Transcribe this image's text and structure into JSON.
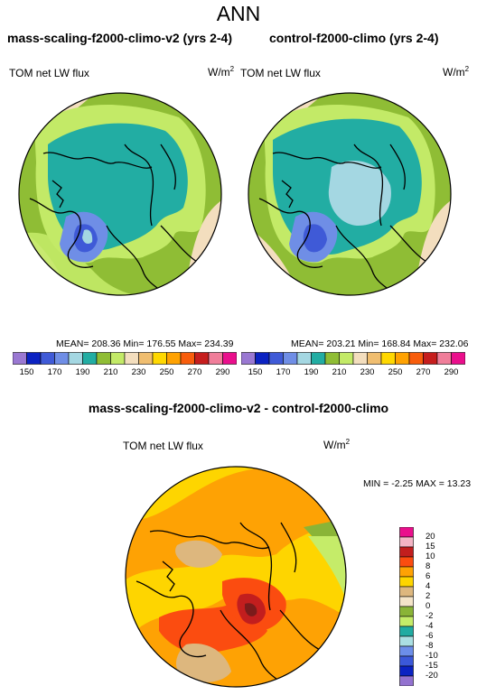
{
  "title": "ANN",
  "panels": [
    {
      "title": "mass-scaling-f2000-climo-v2 (yrs 2-4)",
      "variable": "TOM net LW flux",
      "units": "W/m",
      "units_sup": "2",
      "stats": "MEAN= 208.36  Min= 176.55  Max= 234.39"
    },
    {
      "title": "control-f2000-climo (yrs 2-4)",
      "variable": "TOM net LW flux",
      "units": "W/m",
      "units_sup": "2",
      "stats": "MEAN= 203.21  Min= 168.84  Max= 232.06"
    }
  ],
  "diff_panel": {
    "title": "mass-scaling-f2000-climo-v2 - control-f2000-climo",
    "variable": "TOM net LW flux",
    "units": "W/m",
    "units_sup": "2",
    "stats": "MIN =  -2.25 MAX =  13.23"
  },
  "colorbar_abs": {
    "colors": [
      "#9a78d2",
      "#0b22c2",
      "#3f5ad7",
      "#6f8ee6",
      "#a4d7e2",
      "#22ada3",
      "#8fbd35",
      "#c3ea67",
      "#f3debe",
      "#f0be70",
      "#ffd801",
      "#ffa202",
      "#f85d0c",
      "#c61d1d",
      "#f07e9a",
      "#ea0f8c"
    ],
    "labels": [
      "150",
      "170",
      "190",
      "210",
      "230",
      "250",
      "270",
      "290"
    ]
  },
  "colorbar_diff": {
    "colors": [
      "#ea0f8c",
      "#f3b4c4",
      "#c21e1e",
      "#fb4c10",
      "#fea204",
      "#fed500",
      "#ddb77e",
      "#f4e4c8",
      "#8ab437",
      "#c5ec69",
      "#20aba2",
      "#aadfe3",
      "#6c8ee9",
      "#3b58d9",
      "#0b22c2",
      "#9372d0"
    ],
    "labels": [
      "20",
      "15",
      "10",
      "8",
      "6",
      "4",
      "2",
      "0",
      "-2",
      "-4",
      "-6",
      "-8",
      "-10",
      "-15",
      "-20"
    ]
  }
}
